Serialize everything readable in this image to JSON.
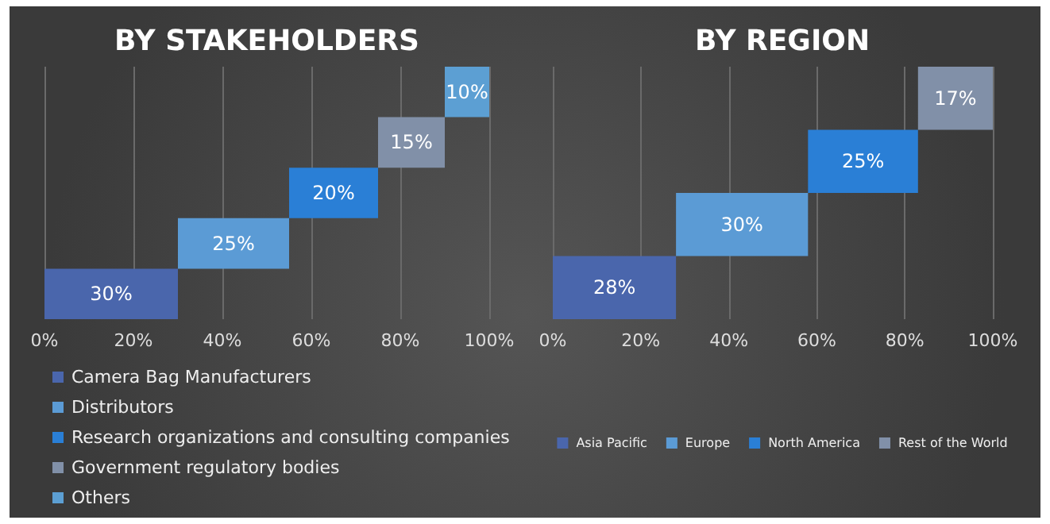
{
  "chart_data": [
    {
      "type": "bar",
      "title": "BY STAKEHOLDERS",
      "orientation": "horizontal",
      "categories": [
        null,
        null,
        null,
        null,
        null
      ],
      "xlim": [
        0,
        100
      ],
      "xticks": [
        {
          "value": 0,
          "label": "0%"
        },
        {
          "value": 20,
          "label": "20%"
        },
        {
          "value": 40,
          "label": "40%"
        },
        {
          "value": 60,
          "label": "60%"
        },
        {
          "value": 80,
          "label": "80%"
        },
        {
          "value": 100,
          "label": "100%"
        }
      ],
      "grid": "x",
      "legend": "bottom left",
      "series": [
        {
          "name": "Camera Bag Manufacturers",
          "color": "#4a66ac",
          "values": [
            null,
            null,
            null,
            null,
            30
          ],
          "base": [
            null,
            null,
            null,
            null,
            0
          ],
          "value_labels": [
            null,
            null,
            null,
            null,
            "30%"
          ]
        },
        {
          "name": "Distributors",
          "color": "#5b9bd5",
          "values": [
            null,
            null,
            null,
            25,
            null
          ],
          "base": [
            null,
            null,
            null,
            30,
            null
          ],
          "value_labels": [
            null,
            null,
            null,
            "25%",
            null
          ]
        },
        {
          "name": "Research organizations and consulting companies",
          "color": "#2a7fd6",
          "values": [
            null,
            null,
            20,
            null,
            null
          ],
          "base": [
            null,
            null,
            55,
            null,
            null
          ],
          "value_labels": [
            null,
            null,
            "20%",
            null,
            null
          ]
        },
        {
          "name": "Government regulatory bodies",
          "color": "#8190a8",
          "values": [
            null,
            15,
            null,
            null,
            null
          ],
          "base": [
            null,
            75,
            null,
            null,
            null
          ],
          "value_labels": [
            null,
            "15%",
            null,
            null,
            null
          ]
        },
        {
          "name": "Others",
          "color": "#5c9fd3",
          "values": [
            10,
            null,
            null,
            null,
            null
          ],
          "base": [
            90,
            null,
            null,
            null,
            null
          ],
          "value_labels": [
            "10%",
            null,
            null,
            null,
            null
          ]
        }
      ]
    },
    {
      "type": "bar",
      "title": "BY REGION",
      "orientation": "horizontal",
      "categories": [
        null,
        null,
        null,
        null
      ],
      "xlim": [
        0,
        100
      ],
      "xticks": [
        {
          "value": 0,
          "label": "0%"
        },
        {
          "value": 20,
          "label": "20%"
        },
        {
          "value": 40,
          "label": "40%"
        },
        {
          "value": 60,
          "label": "60%"
        },
        {
          "value": 80,
          "label": "80%"
        },
        {
          "value": 100,
          "label": "100%"
        }
      ],
      "grid": "x",
      "legend": "bottom",
      "series": [
        {
          "name": "Asia Pacific",
          "color": "#4a66ac",
          "values": [
            null,
            null,
            null,
            28
          ],
          "base": [
            null,
            null,
            null,
            0
          ],
          "value_labels": [
            null,
            null,
            null,
            "28%"
          ]
        },
        {
          "name": "Europe",
          "color": "#5b9bd5",
          "values": [
            null,
            null,
            30,
            null
          ],
          "base": [
            null,
            null,
            28,
            null
          ],
          "value_labels": [
            null,
            null,
            "30%",
            null
          ]
        },
        {
          "name": "North America",
          "color": "#2a7fd6",
          "values": [
            null,
            25,
            null,
            null
          ],
          "base": [
            null,
            58,
            null,
            null
          ],
          "value_labels": [
            null,
            "25%",
            null,
            null
          ]
        },
        {
          "name": "Rest of the World",
          "color": "#8190a8",
          "values": [
            17,
            null,
            null,
            null
          ],
          "base": [
            83,
            null,
            null,
            null
          ],
          "value_labels": [
            "17%",
            null,
            null,
            null
          ]
        }
      ]
    }
  ]
}
